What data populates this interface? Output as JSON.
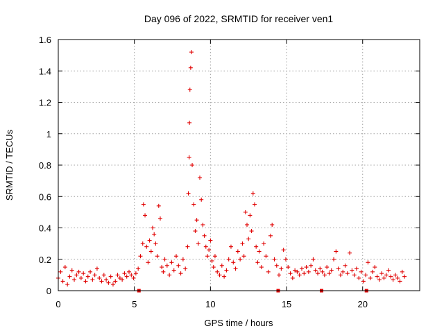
{
  "chart_data": {
    "type": "scatter",
    "title": "Day 096 of 2022, SRMTID for receiver ven1",
    "xlabel": "GPS time / hours",
    "ylabel": "SRMTID / TECUs",
    "xlim": [
      0,
      23.75
    ],
    "ylim": [
      0,
      1.6
    ],
    "xticks": [
      0,
      5,
      10,
      15,
      20
    ],
    "xtick_labels": [
      "0",
      "5",
      "10",
      "15",
      "20"
    ],
    "yticks": [
      0,
      0.2,
      0.4,
      0.6,
      0.8,
      1.0,
      1.2,
      1.4,
      1.6
    ],
    "ytick_labels": [
      "0",
      "0.2",
      "0.4",
      "0.6",
      "0.8",
      "1",
      "1.2",
      "1.4",
      "1.6"
    ],
    "grid": true,
    "marker": "+",
    "color": "#e00000",
    "series": [
      {
        "name": "SRMTID",
        "x": [
          0.0,
          0.15,
          0.3,
          0.45,
          0.6,
          0.75,
          0.9,
          1.05,
          1.2,
          1.35,
          1.5,
          1.65,
          1.8,
          1.95,
          2.1,
          2.25,
          2.4,
          2.55,
          2.7,
          2.85,
          3.0,
          3.15,
          3.3,
          3.45,
          3.6,
          3.75,
          3.9,
          4.05,
          4.2,
          4.35,
          4.5,
          4.65,
          4.8,
          4.95,
          5.1,
          5.25,
          5.4,
          5.55,
          5.6,
          5.7,
          5.8,
          5.9,
          6.0,
          6.1,
          6.2,
          6.3,
          6.4,
          6.5,
          6.6,
          6.7,
          6.8,
          6.9,
          7.0,
          7.15,
          7.3,
          7.45,
          7.6,
          7.75,
          7.9,
          8.05,
          8.2,
          8.35,
          8.5,
          8.55,
          8.6,
          8.62,
          8.65,
          8.7,
          8.75,
          8.8,
          8.9,
          9.0,
          9.1,
          9.2,
          9.3,
          9.4,
          9.5,
          9.6,
          9.7,
          9.8,
          9.9,
          10.0,
          10.1,
          10.2,
          10.3,
          10.45,
          10.6,
          10.75,
          10.9,
          11.05,
          11.2,
          11.35,
          11.5,
          11.65,
          11.8,
          11.95,
          12.1,
          12.2,
          12.3,
          12.4,
          12.5,
          12.6,
          12.7,
          12.8,
          12.9,
          13.0,
          13.1,
          13.2,
          13.35,
          13.5,
          13.65,
          13.8,
          13.95,
          14.05,
          14.2,
          14.35,
          14.5,
          14.65,
          14.8,
          14.95,
          15.1,
          15.25,
          15.4,
          15.55,
          15.7,
          15.85,
          16.0,
          16.15,
          16.3,
          16.45,
          16.6,
          16.75,
          16.9,
          17.05,
          17.2,
          17.35,
          17.5,
          17.65,
          17.8,
          17.95,
          18.1,
          18.25,
          18.4,
          18.55,
          18.7,
          18.85,
          19.0,
          19.15,
          19.3,
          19.45,
          19.6,
          19.75,
          19.9,
          20.05,
          20.2,
          20.35,
          20.5,
          20.65,
          20.8,
          20.95,
          21.1,
          21.25,
          21.4,
          21.55,
          21.7,
          21.85,
          22.0,
          22.15,
          22.3,
          22.45,
          22.6,
          22.75
        ],
        "y": [
          0.08,
          0.12,
          0.06,
          0.15,
          0.04,
          0.09,
          0.13,
          0.07,
          0.1,
          0.12,
          0.08,
          0.11,
          0.06,
          0.09,
          0.12,
          0.07,
          0.1,
          0.14,
          0.08,
          0.06,
          0.1,
          0.07,
          0.05,
          0.09,
          0.04,
          0.06,
          0.1,
          0.08,
          0.07,
          0.11,
          0.09,
          0.12,
          0.1,
          0.08,
          0.11,
          0.14,
          0.22,
          0.3,
          0.55,
          0.48,
          0.28,
          0.18,
          0.32,
          0.25,
          0.4,
          0.36,
          0.3,
          0.22,
          0.54,
          0.46,
          0.15,
          0.12,
          0.2,
          0.16,
          0.1,
          0.18,
          0.13,
          0.22,
          0.16,
          0.11,
          0.2,
          0.14,
          0.28,
          0.62,
          0.85,
          1.07,
          1.28,
          1.42,
          1.52,
          0.8,
          0.55,
          0.38,
          0.45,
          0.3,
          0.72,
          0.58,
          0.42,
          0.35,
          0.28,
          0.22,
          0.26,
          0.32,
          0.19,
          0.15,
          0.22,
          0.12,
          0.1,
          0.16,
          0.09,
          0.13,
          0.2,
          0.28,
          0.18,
          0.14,
          0.25,
          0.2,
          0.3,
          0.22,
          0.5,
          0.42,
          0.33,
          0.48,
          0.38,
          0.62,
          0.55,
          0.28,
          0.18,
          0.25,
          0.15,
          0.3,
          0.22,
          0.12,
          0.35,
          0.42,
          0.2,
          0.16,
          0.1,
          0.14,
          0.26,
          0.2,
          0.15,
          0.11,
          0.08,
          0.13,
          0.12,
          0.1,
          0.14,
          0.11,
          0.15,
          0.12,
          0.16,
          0.2,
          0.13,
          0.11,
          0.14,
          0.12,
          0.1,
          0.15,
          0.11,
          0.13,
          0.2,
          0.25,
          0.14,
          0.1,
          0.12,
          0.16,
          0.11,
          0.24,
          0.13,
          0.1,
          0.14,
          0.08,
          0.12,
          0.06,
          0.1,
          0.18,
          0.08,
          0.12,
          0.15,
          0.09,
          0.07,
          0.11,
          0.08,
          0.1,
          0.13,
          0.09,
          0.07,
          0.1,
          0.08,
          0.06,
          0.12,
          0.09
        ]
      }
    ],
    "gap_markers": [
      5.3,
      14.45,
      17.3,
      20.25
    ]
  }
}
